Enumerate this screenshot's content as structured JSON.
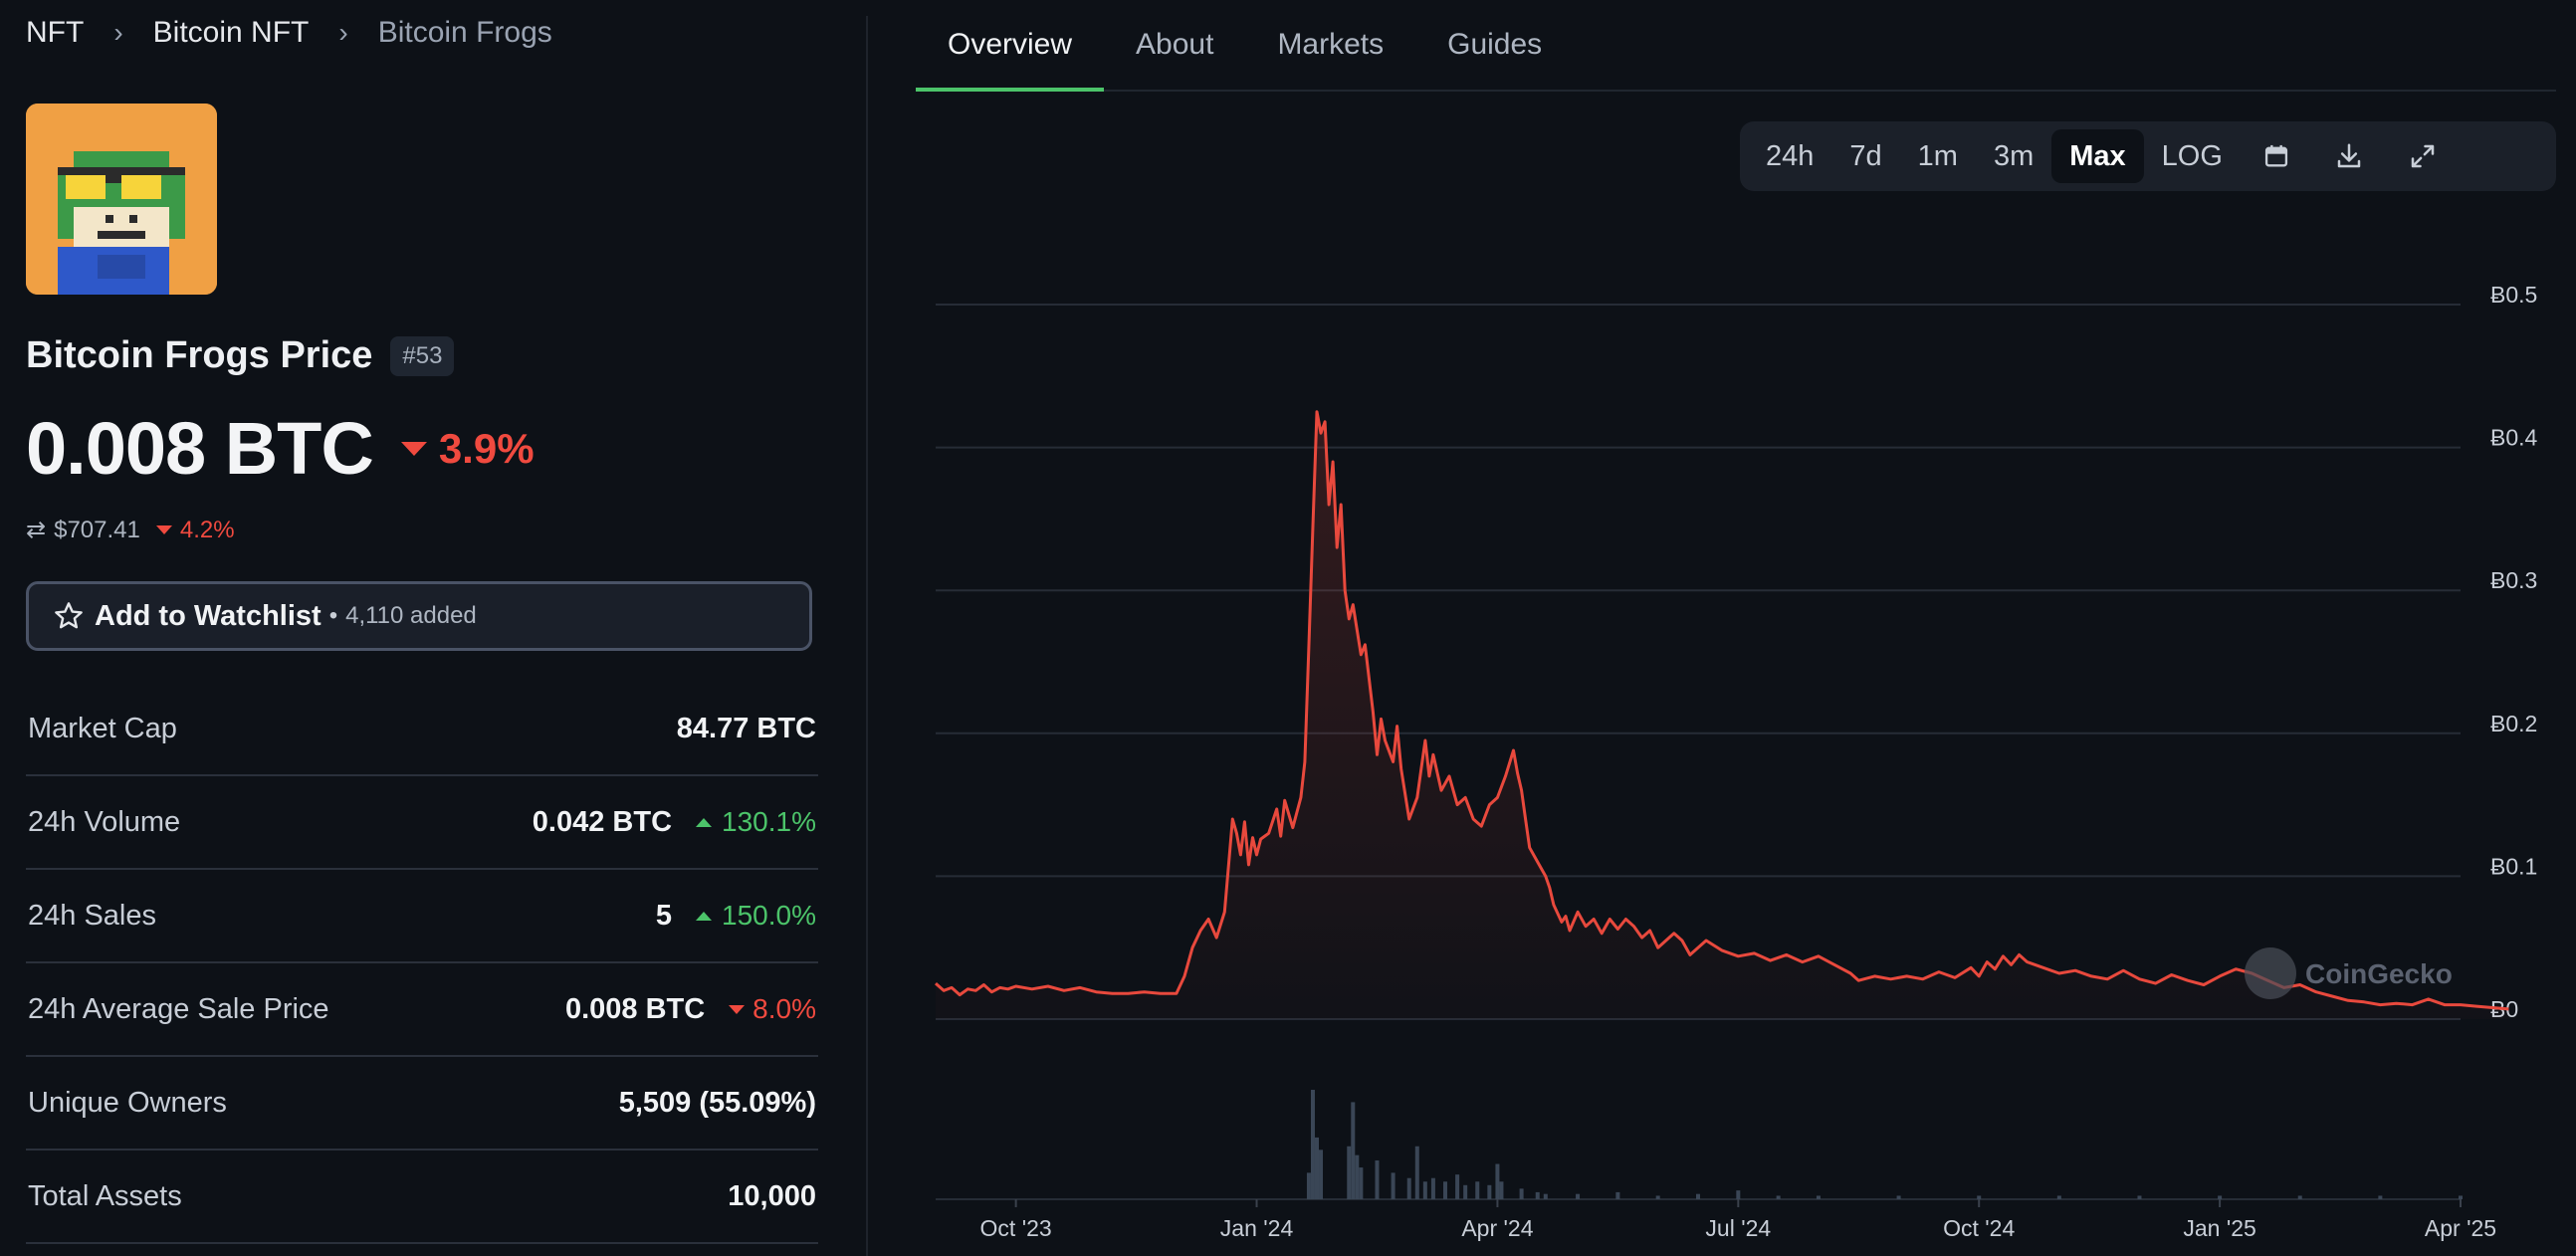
{
  "breadcrumb": [
    "NFT",
    "Bitcoin NFT",
    "Bitcoin Frogs"
  ],
  "nft": {
    "name": "Bitcoin Frogs Price",
    "rank": "#53",
    "price": "0.008 BTC",
    "change_24h": "3.9%",
    "usd_price": "$707.41",
    "usd_change": "4.2%"
  },
  "watchlist": {
    "label": "Add to Watchlist",
    "separator": "•",
    "count": "4,110 added"
  },
  "stats": [
    {
      "key": "Market Cap",
      "value": "84.77 BTC",
      "change": "",
      "direction": ""
    },
    {
      "key": "24h Volume",
      "value": "0.042 BTC",
      "change": "130.1%",
      "direction": "up"
    },
    {
      "key": "24h Sales",
      "value": "5",
      "change": "150.0%",
      "direction": "up"
    },
    {
      "key": "24h Average Sale Price",
      "value": "0.008 BTC",
      "change": "8.0%",
      "direction": "down"
    },
    {
      "key": "Unique Owners",
      "value": "5,509 (55.09%)",
      "change": "",
      "direction": ""
    },
    {
      "key": "Total Assets",
      "value": "10,000",
      "change": "",
      "direction": ""
    }
  ],
  "tabs": [
    "Overview",
    "About",
    "Markets",
    "Guides"
  ],
  "active_tab": "Overview",
  "range_buttons": [
    "24h",
    "7d",
    "1m",
    "3m",
    "Max",
    "LOG"
  ],
  "active_range": "Max",
  "toolbar_icons": [
    "calendar-icon",
    "download-icon",
    "fullscreen-icon"
  ],
  "watermark": "CoinGecko",
  "colors": {
    "accent": "#4cc46a",
    "down": "#f04a3f",
    "up": "#4cc46a",
    "line": "#e8493d",
    "background": "#0d1117"
  },
  "chart_data": {
    "type": "line",
    "ylim": [
      0,
      0.5
    ],
    "y_ticks": [
      "Ƀ0.5",
      "Ƀ0.4",
      "Ƀ0.3",
      "Ƀ0.2",
      "Ƀ0.1",
      "Ƀ0"
    ],
    "y_tick_values": [
      0.5,
      0.4,
      0.3,
      0.2,
      0.1,
      0
    ],
    "x_ticks": [
      "Oct '23",
      "Jan '24",
      "Apr '24",
      "Jul '24",
      "Oct '24",
      "Jan '25",
      "Apr '25"
    ],
    "x_tick_index": [
      1,
      4,
      7,
      10,
      13,
      16,
      19
    ],
    "xlim_index": [
      0,
      19
    ],
    "series": [
      {
        "name": "",
        "points": [
          [
            0.0,
            0.025
          ],
          [
            0.1,
            0.02
          ],
          [
            0.2,
            0.022
          ],
          [
            0.3,
            0.017
          ],
          [
            0.4,
            0.021
          ],
          [
            0.5,
            0.02
          ],
          [
            0.6,
            0.024
          ],
          [
            0.7,
            0.019
          ],
          [
            0.8,
            0.022
          ],
          [
            0.9,
            0.021
          ],
          [
            1.0,
            0.023
          ],
          [
            1.2,
            0.021
          ],
          [
            1.4,
            0.023
          ],
          [
            1.6,
            0.02
          ],
          [
            1.8,
            0.022
          ],
          [
            2.0,
            0.019
          ],
          [
            2.2,
            0.018
          ],
          [
            2.4,
            0.018
          ],
          [
            2.6,
            0.019
          ],
          [
            2.8,
            0.018
          ],
          [
            3.0,
            0.018
          ],
          [
            3.1,
            0.03
          ],
          [
            3.2,
            0.05
          ],
          [
            3.3,
            0.062
          ],
          [
            3.4,
            0.07
          ],
          [
            3.5,
            0.057
          ],
          [
            3.6,
            0.075
          ],
          [
            3.7,
            0.14
          ],
          [
            3.75,
            0.13
          ],
          [
            3.8,
            0.115
          ],
          [
            3.85,
            0.138
          ],
          [
            3.9,
            0.108
          ],
          [
            3.95,
            0.127
          ],
          [
            4.0,
            0.115
          ],
          [
            4.05,
            0.126
          ],
          [
            4.15,
            0.13
          ],
          [
            4.25,
            0.147
          ],
          [
            4.3,
            0.128
          ],
          [
            4.35,
            0.153
          ],
          [
            4.45,
            0.134
          ],
          [
            4.55,
            0.155
          ],
          [
            4.6,
            0.18
          ],
          [
            4.65,
            0.26
          ],
          [
            4.7,
            0.345
          ],
          [
            4.75,
            0.425
          ],
          [
            4.8,
            0.41
          ],
          [
            4.85,
            0.418
          ],
          [
            4.9,
            0.36
          ],
          [
            4.95,
            0.39
          ],
          [
            5.0,
            0.33
          ],
          [
            5.05,
            0.36
          ],
          [
            5.1,
            0.3
          ],
          [
            5.15,
            0.28
          ],
          [
            5.2,
            0.29
          ],
          [
            5.3,
            0.255
          ],
          [
            5.35,
            0.262
          ],
          [
            5.45,
            0.215
          ],
          [
            5.5,
            0.185
          ],
          [
            5.55,
            0.21
          ],
          [
            5.6,
            0.195
          ],
          [
            5.7,
            0.18
          ],
          [
            5.75,
            0.205
          ],
          [
            5.8,
            0.175
          ],
          [
            5.9,
            0.14
          ],
          [
            6.0,
            0.155
          ],
          [
            6.05,
            0.175
          ],
          [
            6.1,
            0.195
          ],
          [
            6.15,
            0.17
          ],
          [
            6.2,
            0.185
          ],
          [
            6.3,
            0.16
          ],
          [
            6.4,
            0.17
          ],
          [
            6.5,
            0.15
          ],
          [
            6.6,
            0.155
          ],
          [
            6.7,
            0.14
          ],
          [
            6.8,
            0.135
          ],
          [
            6.9,
            0.15
          ],
          [
            7.0,
            0.155
          ],
          [
            7.1,
            0.17
          ],
          [
            7.2,
            0.188
          ],
          [
            7.25,
            0.172
          ],
          [
            7.3,
            0.16
          ],
          [
            7.35,
            0.14
          ],
          [
            7.4,
            0.12
          ],
          [
            7.5,
            0.11
          ],
          [
            7.6,
            0.1
          ],
          [
            7.65,
            0.092
          ],
          [
            7.7,
            0.08
          ],
          [
            7.8,
            0.068
          ],
          [
            7.85,
            0.072
          ],
          [
            7.9,
            0.062
          ],
          [
            8.0,
            0.075
          ],
          [
            8.1,
            0.065
          ],
          [
            8.2,
            0.07
          ],
          [
            8.3,
            0.06
          ],
          [
            8.4,
            0.07
          ],
          [
            8.5,
            0.063
          ],
          [
            8.6,
            0.07
          ],
          [
            8.7,
            0.065
          ],
          [
            8.8,
            0.057
          ],
          [
            8.9,
            0.062
          ],
          [
            9.0,
            0.05
          ],
          [
            9.2,
            0.06
          ],
          [
            9.3,
            0.055
          ],
          [
            9.4,
            0.045
          ],
          [
            9.6,
            0.055
          ],
          [
            9.8,
            0.048
          ],
          [
            10.0,
            0.044
          ],
          [
            10.2,
            0.046
          ],
          [
            10.4,
            0.041
          ],
          [
            10.6,
            0.045
          ],
          [
            10.8,
            0.04
          ],
          [
            11.0,
            0.044
          ],
          [
            11.2,
            0.038
          ],
          [
            11.4,
            0.032
          ],
          [
            11.5,
            0.027
          ],
          [
            11.7,
            0.03
          ],
          [
            11.9,
            0.028
          ],
          [
            12.1,
            0.03
          ],
          [
            12.3,
            0.028
          ],
          [
            12.5,
            0.033
          ],
          [
            12.7,
            0.029
          ],
          [
            12.9,
            0.036
          ],
          [
            13.0,
            0.03
          ],
          [
            13.1,
            0.04
          ],
          [
            13.2,
            0.035
          ],
          [
            13.3,
            0.044
          ],
          [
            13.4,
            0.038
          ],
          [
            13.5,
            0.045
          ],
          [
            13.6,
            0.04
          ],
          [
            13.8,
            0.036
          ],
          [
            14.0,
            0.032
          ],
          [
            14.2,
            0.034
          ],
          [
            14.4,
            0.03
          ],
          [
            14.6,
            0.028
          ],
          [
            14.8,
            0.034
          ],
          [
            15.0,
            0.028
          ],
          [
            15.2,
            0.025
          ],
          [
            15.4,
            0.031
          ],
          [
            15.6,
            0.027
          ],
          [
            15.8,
            0.024
          ],
          [
            16.0,
            0.03
          ],
          [
            16.2,
            0.035
          ],
          [
            16.4,
            0.032
          ],
          [
            16.6,
            0.027
          ],
          [
            16.8,
            0.022
          ],
          [
            17.0,
            0.024
          ],
          [
            17.2,
            0.019
          ],
          [
            17.4,
            0.016
          ],
          [
            17.6,
            0.013
          ],
          [
            17.8,
            0.012
          ],
          [
            18.0,
            0.01
          ],
          [
            18.2,
            0.011
          ],
          [
            18.4,
            0.01
          ],
          [
            18.6,
            0.014
          ],
          [
            18.8,
            0.01
          ],
          [
            19.0,
            0.01
          ],
          [
            19.2,
            0.009
          ],
          [
            19.4,
            0.008
          ],
          [
            19.6,
            0.007
          ]
        ]
      }
    ],
    "volume": [
      [
        4.65,
        0.15
      ],
      [
        4.7,
        0.62
      ],
      [
        4.75,
        0.35
      ],
      [
        4.8,
        0.28
      ],
      [
        5.15,
        0.3
      ],
      [
        5.2,
        0.55
      ],
      [
        5.25,
        0.25
      ],
      [
        5.3,
        0.18
      ],
      [
        5.5,
        0.22
      ],
      [
        5.7,
        0.15
      ],
      [
        5.9,
        0.12
      ],
      [
        6.0,
        0.3
      ],
      [
        6.1,
        0.1
      ],
      [
        6.2,
        0.12
      ],
      [
        6.35,
        0.1
      ],
      [
        6.5,
        0.14
      ],
      [
        6.6,
        0.08
      ],
      [
        6.75,
        0.1
      ],
      [
        6.9,
        0.08
      ],
      [
        7.0,
        0.2
      ],
      [
        7.05,
        0.1
      ],
      [
        7.3,
        0.06
      ],
      [
        7.5,
        0.04
      ],
      [
        7.6,
        0.03
      ],
      [
        8.0,
        0.03
      ],
      [
        8.5,
        0.04
      ],
      [
        9.0,
        0.02
      ],
      [
        9.5,
        0.03
      ],
      [
        10.0,
        0.05
      ],
      [
        10.5,
        0.02
      ],
      [
        11.0,
        0.02
      ],
      [
        12.0,
        0.02
      ],
      [
        13.0,
        0.02
      ],
      [
        14.0,
        0.02
      ],
      [
        15.0,
        0.02
      ],
      [
        16.0,
        0.02
      ],
      [
        17.0,
        0.02
      ],
      [
        18.0,
        0.02
      ],
      [
        19.0,
        0.02
      ]
    ]
  }
}
